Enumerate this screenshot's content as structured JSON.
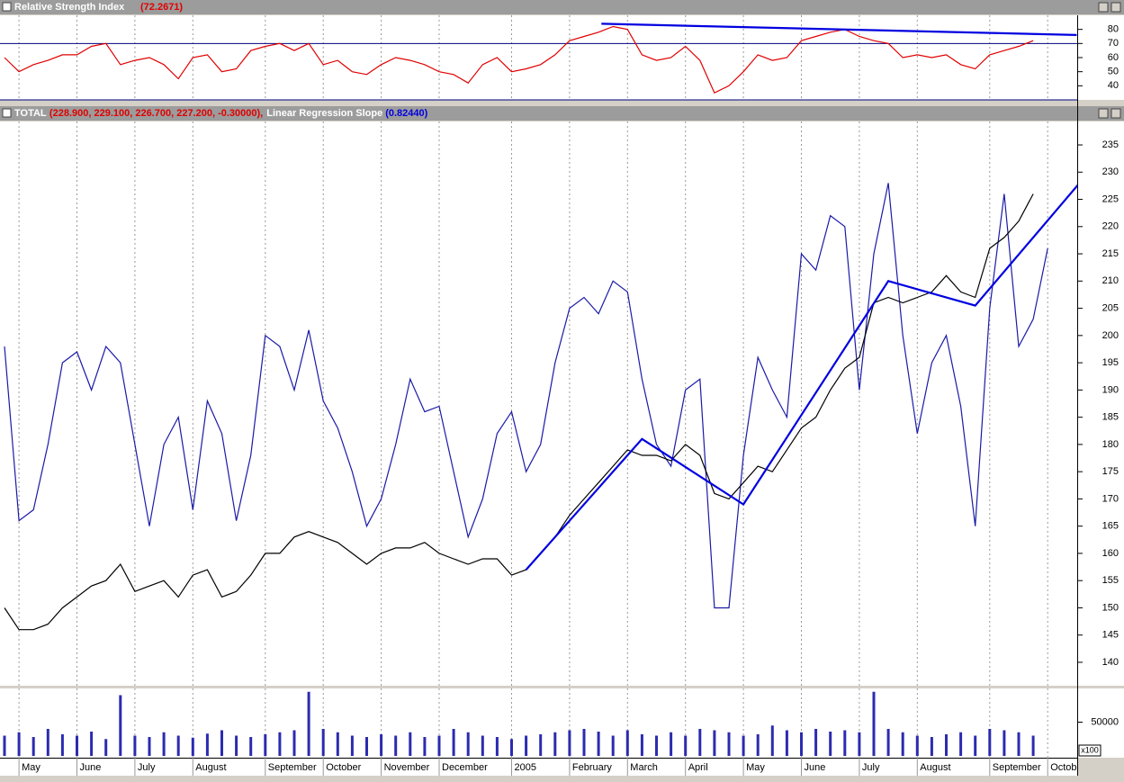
{
  "chart_data": [
    {
      "type": "line",
      "title": "Relative Strength Index",
      "header_value": "(72.2671)",
      "ylim": [
        30,
        90
      ],
      "yticks": [
        40,
        50,
        60,
        70,
        80
      ],
      "reference_lines": [
        70,
        30
      ],
      "color": "#e00000",
      "values": [
        60,
        50,
        55,
        58,
        62,
        62,
        68,
        70,
        55,
        58,
        60,
        55,
        45,
        60,
        62,
        50,
        52,
        65,
        68,
        70,
        65,
        70,
        55,
        58,
        50,
        48,
        55,
        60,
        58,
        55,
        50,
        48,
        42,
        55,
        60,
        50,
        52,
        55,
        62,
        72,
        75,
        78,
        82,
        80,
        62,
        58,
        60,
        68,
        58,
        35,
        40,
        50,
        62,
        58,
        60,
        72,
        75,
        78,
        80,
        75,
        72,
        70,
        60,
        62,
        60,
        62,
        55,
        52,
        62,
        65,
        68,
        72,
        null
      ],
      "trend_line": {
        "color": "#0000e0",
        "x": [
          41.2,
          74
        ],
        "values": [
          84,
          76
        ]
      }
    },
    {
      "type": "line",
      "header_value": "(228.900, 229.100, 226.700, 227.200, -0.30000),",
      "indicator_value": "(0.82440)",
      "ylim": [
        135.7,
        239.3
      ],
      "yticks": [
        140,
        145,
        150,
        155,
        160,
        165,
        170,
        175,
        180,
        185,
        190,
        195,
        200,
        205,
        210,
        215,
        220,
        225,
        230,
        235
      ],
      "series": [
        {
          "name": "TOTAL",
          "color": "#000000",
          "values": [
            150,
            146,
            146,
            147,
            150,
            152,
            154,
            155,
            158,
            153,
            154,
            155,
            152,
            156,
            157,
            152,
            153,
            156,
            160,
            160,
            163,
            164,
            163,
            162,
            160,
            158,
            160,
            161,
            161,
            162,
            160,
            159,
            158,
            159,
            159,
            156,
            157,
            160,
            163,
            167,
            170,
            173,
            176,
            179,
            178,
            178,
            177,
            180,
            178,
            171,
            170,
            173,
            176,
            175,
            179,
            183,
            185,
            190,
            194,
            196,
            206,
            207,
            206,
            207,
            208,
            211,
            208,
            207,
            216,
            218,
            221,
            226,
            null
          ]
        },
        {
          "name": "Linear Regression Slope",
          "color": "#1a1aa8",
          "values": [
            198,
            166,
            168,
            180,
            195,
            197,
            190,
            198,
            195,
            180,
            165,
            180,
            185,
            168,
            188,
            182,
            166,
            178,
            200,
            198,
            190,
            201,
            188,
            183,
            175,
            165,
            170,
            180,
            192,
            186,
            187,
            175,
            163,
            170,
            182,
            186,
            175,
            180,
            195,
            205,
            207,
            204,
            210,
            208,
            192,
            180,
            176,
            190,
            192,
            150,
            150,
            178,
            196,
            190,
            185,
            215,
            212,
            222,
            220,
            190,
            215,
            228,
            200,
            182,
            195,
            200,
            187,
            165,
            205,
            226,
            198,
            203,
            216
          ]
        }
      ],
      "trend_line": {
        "color": "#0000e0",
        "x": [
          36,
          44,
          51,
          61,
          67,
          74.2
        ],
        "values": [
          157,
          181,
          169,
          210,
          205.5,
          228
        ]
      }
    },
    {
      "type": "bar",
      "unit_label": "x100",
      "color": "#2b2bb0",
      "ylim": [
        0,
        100000
      ],
      "yticks": [
        50000
      ],
      "categories": [
        null,
        "May",
        null,
        null,
        null,
        "June",
        null,
        null,
        null,
        "July",
        null,
        null,
        null,
        "August",
        null,
        null,
        null,
        null,
        "September",
        null,
        null,
        null,
        "October",
        null,
        null,
        null,
        "November",
        null,
        null,
        null,
        "December",
        null,
        null,
        null,
        null,
        "2005",
        null,
        null,
        null,
        "February",
        null,
        null,
        null,
        "March",
        null,
        null,
        null,
        "April",
        null,
        null,
        null,
        "May",
        null,
        null,
        null,
        "June",
        null,
        null,
        null,
        "July",
        null,
        null,
        null,
        "August",
        null,
        null,
        null,
        null,
        "September",
        null,
        null,
        null,
        "Octob"
      ],
      "values": [
        30000,
        35000,
        28000,
        40000,
        32000,
        30000,
        36000,
        25000,
        90000,
        30000,
        28000,
        35000,
        30000,
        27000,
        33000,
        38000,
        30000,
        28000,
        32000,
        35000,
        38000,
        95000,
        40000,
        35000,
        30000,
        28000,
        32000,
        30000,
        35000,
        28000,
        30000,
        40000,
        35000,
        30000,
        28000,
        25000,
        30000,
        32000,
        35000,
        38000,
        40000,
        36000,
        30000,
        38000,
        32000,
        30000,
        35000,
        30000,
        40000,
        38000,
        35000,
        30000,
        32000,
        45000,
        38000,
        35000,
        40000,
        36000,
        38000,
        35000,
        95000,
        40000,
        35000,
        30000,
        28000,
        32000,
        35000,
        30000,
        40000,
        38000,
        35000,
        30000,
        null
      ]
    }
  ]
}
